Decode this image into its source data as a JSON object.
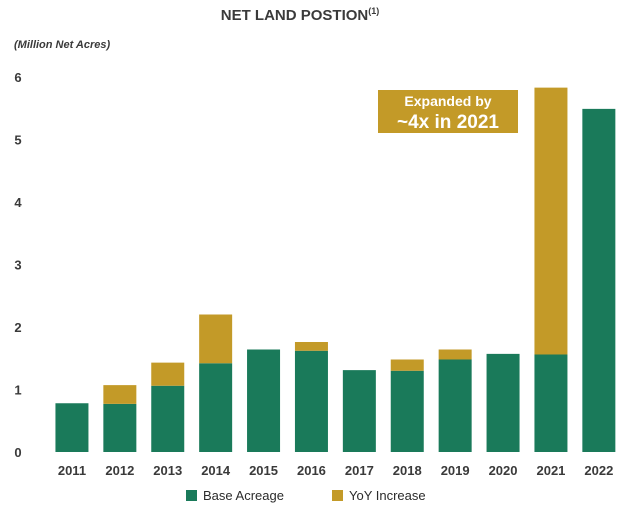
{
  "chart_data": {
    "type": "bar",
    "stacked": true,
    "title": "NET LAND POSTION",
    "title_superscript": "(1)",
    "ylabel": "(Million Net Acres)",
    "xlabel": "",
    "ylim": [
      0,
      6
    ],
    "yticks": [
      0,
      1,
      2,
      3,
      4,
      5,
      6
    ],
    "grid": false,
    "legend_position": "bottom",
    "categories": [
      "2011",
      "2012",
      "2013",
      "2014",
      "2015",
      "2016",
      "2017",
      "2018",
      "2019",
      "2020",
      "2021",
      "2022"
    ],
    "series": [
      {
        "name": "Base Acreage",
        "color": "#1a7a5a",
        "values": [
          0.78,
          0.77,
          1.06,
          1.42,
          1.64,
          1.62,
          1.31,
          1.3,
          1.48,
          1.57,
          1.56,
          5.49
        ]
      },
      {
        "name": "YoY Increase",
        "color": "#c39a28",
        "values": [
          0,
          0.3,
          0.37,
          0.78,
          0,
          0.14,
          0,
          0.18,
          0.16,
          0,
          4.27,
          0
        ]
      }
    ],
    "annotation": {
      "line1": "Expanded by",
      "line2": "~4x in 2021",
      "background": "#c39a28"
    }
  }
}
